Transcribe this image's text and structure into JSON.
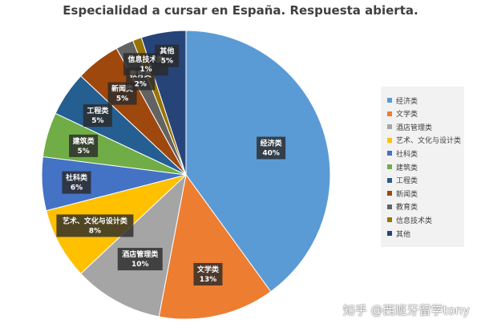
{
  "chart_data": {
    "type": "pie",
    "title": "Especialidad a cursar en España. Respuesta abierta.",
    "categories": [
      "经济类",
      "文学类",
      "酒店管理类",
      "艺术、文化与设计类",
      "社科类",
      "建筑类",
      "工程类",
      "新闻类",
      "教育类",
      "信息技术类",
      "其他"
    ],
    "values": [
      40,
      13,
      10,
      8,
      6,
      5,
      5,
      5,
      2,
      1,
      5
    ],
    "data_labels": [
      "40%",
      "13%",
      "10%",
      "8%",
      "6%",
      "5%",
      "5%",
      "5%",
      "2%",
      "1%",
      "5%"
    ],
    "colors": [
      "#5b9bd5",
      "#ed7d31",
      "#a5a5a5",
      "#ffc000",
      "#4472c4",
      "#70ad47",
      "#255e91",
      "#9e480e",
      "#636363",
      "#997300",
      "#264478"
    ],
    "legend_position": "right",
    "start_angle_deg": 0,
    "direction": "clockwise"
  },
  "watermark": "知乎 @西班牙留学tony"
}
